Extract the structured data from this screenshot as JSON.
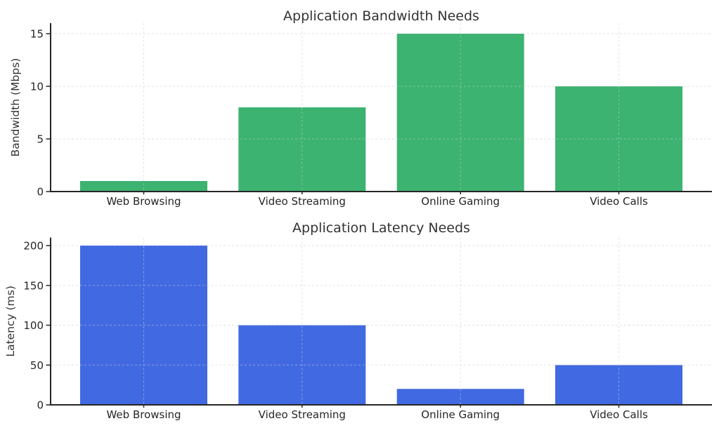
{
  "figure": {
    "background_color": "#ffffff",
    "description": "Two stacked bar charts comparing application network needs"
  },
  "colors": {
    "bandwidth_bar": "#3CB371",
    "latency_bar": "#4169E1",
    "grid": "#cccccc",
    "axis": "#262626",
    "text": "#333333"
  },
  "chart_data": [
    {
      "type": "bar",
      "title": "Application Bandwidth Needs",
      "categories": [
        "Web Browsing",
        "Video Streaming",
        "Online Gaming",
        "Video Calls"
      ],
      "values": [
        1,
        8,
        15,
        10
      ],
      "xlabel": "",
      "ylabel": "Bandwidth (Mbps)",
      "yticks": [
        0,
        5,
        10,
        15
      ],
      "ylim": [
        0,
        16
      ],
      "bar_color": "#3CB371",
      "grid": "dashed, horizontal at yticks and vertical at category centers, drawn over bars",
      "legend_position": "none"
    },
    {
      "type": "bar",
      "title": "Application Latency Needs",
      "categories": [
        "Web Browsing",
        "Video Streaming",
        "Online Gaming",
        "Video Calls"
      ],
      "values": [
        200,
        100,
        20,
        50
      ],
      "xlabel": "",
      "ylabel": "Latency (ms)",
      "yticks": [
        0,
        50,
        100,
        150,
        200
      ],
      "ylim": [
        0,
        210
      ],
      "bar_color": "#4169E1",
      "grid": "dashed, horizontal at yticks and vertical at category centers, drawn over bars",
      "legend_position": "none"
    }
  ]
}
